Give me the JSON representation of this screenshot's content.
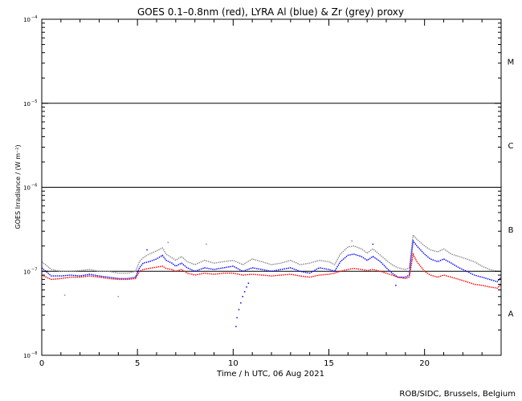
{
  "chart_data": {
    "type": "scatter",
    "title": "GOES 0.1–0.8nm (red), LYRA Al (blue) & Zr (grey) proxy",
    "xlabel": "Time / h UTC, 06 Aug 2021",
    "ylabel": "GOES Irradiance / (W m⁻²)",
    "xlim": [
      0,
      24
    ],
    "ylim": [
      1e-08,
      0.0001
    ],
    "yscale": "log",
    "x_ticks": [
      {
        "value": 0,
        "label": "0"
      },
      {
        "value": 5,
        "label": "5"
      },
      {
        "value": 10,
        "label": "10"
      },
      {
        "value": 15,
        "label": "15"
      },
      {
        "value": 20,
        "label": "20"
      }
    ],
    "y_ticks": [
      {
        "value": 1e-08,
        "base": "10",
        "exp": "−8"
      },
      {
        "value": 1e-07,
        "base": "10",
        "exp": "−7"
      },
      {
        "value": 1e-06,
        "base": "10",
        "exp": "−6"
      },
      {
        "value": 1e-05,
        "base": "10",
        "exp": "−5"
      },
      {
        "value": 0.0001,
        "base": "10",
        "exp": "−4"
      }
    ],
    "flare_class_labels": [
      {
        "label": "A",
        "at": 3.16e-08
      },
      {
        "label": "B",
        "at": 3.16e-07
      },
      {
        "label": "C",
        "at": 3.16e-06
      },
      {
        "label": "M",
        "at": 3.16e-05
      }
    ],
    "reference_lines": [
      1e-07,
      1e-06,
      1e-05
    ],
    "series": [
      {
        "color": "#8c8c8c",
        "x": [
          0,
          0.5,
          1,
          1.5,
          2,
          2.5,
          3,
          3.5,
          4,
          4.5,
          4.9,
          5.1,
          5.3,
          5.6,
          6,
          6.3,
          6.5,
          6.8,
          7,
          7.3,
          7.6,
          8,
          8.5,
          9,
          9.5,
          10,
          10.5,
          11,
          11.5,
          12,
          12.5,
          13,
          13.5,
          14,
          14.5,
          15,
          15.3,
          15.6,
          16,
          16.3,
          16.7,
          17,
          17.3,
          17.7,
          18,
          18.3,
          18.6,
          19,
          19.2,
          19.4,
          19.6,
          20,
          20.3,
          20.7,
          21,
          21.4,
          21.8,
          22.2,
          22.6,
          23,
          23.4,
          23.8,
          24
        ],
        "y": [
          1.3e-07,
          1.05e-07,
          1e-07,
          1e-07,
          1.02e-07,
          1.05e-07,
          1e-07,
          1e-07,
          9.5e-08,
          9.5e-08,
          1e-07,
          1.3e-07,
          1.45e-07,
          1.6e-07,
          1.75e-07,
          1.9e-07,
          1.6e-07,
          1.45e-07,
          1.35e-07,
          1.5e-07,
          1.3e-07,
          1.2e-07,
          1.35e-07,
          1.25e-07,
          1.3e-07,
          1.35e-07,
          1.2e-07,
          1.4e-07,
          1.3e-07,
          1.2e-07,
          1.25e-07,
          1.35e-07,
          1.2e-07,
          1.25e-07,
          1.35e-07,
          1.3e-07,
          1.2e-07,
          1.6e-07,
          1.95e-07,
          2e-07,
          1.85e-07,
          1.65e-07,
          1.85e-07,
          1.55e-07,
          1.35e-07,
          1.2e-07,
          1.1e-07,
          1.05e-07,
          1.1e-07,
          2.7e-07,
          2.4e-07,
          2e-07,
          1.8e-07,
          1.7e-07,
          1.85e-07,
          1.6e-07,
          1.5e-07,
          1.4e-07,
          1.3e-07,
          1.15e-07,
          1.05e-07,
          1e-07,
          1e-07
        ]
      },
      {
        "color": "#0000ff",
        "x": [
          0,
          0.5,
          1,
          1.5,
          2,
          2.5,
          3,
          3.5,
          4,
          4.5,
          4.9,
          5.1,
          5.3,
          5.6,
          6,
          6.3,
          6.5,
          6.8,
          7,
          7.3,
          7.6,
          8,
          8.5,
          9,
          9.5,
          10,
          10.5,
          11,
          11.5,
          12,
          12.5,
          13,
          13.5,
          14,
          14.5,
          15,
          15.3,
          15.6,
          16,
          16.3,
          16.7,
          17,
          17.3,
          17.7,
          18,
          18.3,
          18.6,
          19,
          19.2,
          19.4,
          19.6,
          20,
          20.3,
          20.7,
          21,
          21.4,
          21.8,
          22.2,
          22.6,
          23,
          23.4,
          23.8,
          24
        ],
        "y": [
          1.1e-07,
          8.8e-08,
          8.8e-08,
          9e-08,
          8.8e-08,
          9.2e-08,
          8.8e-08,
          8.5e-08,
          8.2e-08,
          8.2e-08,
          8.5e-08,
          1.1e-07,
          1.25e-07,
          1.3e-07,
          1.4e-07,
          1.55e-07,
          1.35e-07,
          1.25e-07,
          1.15e-07,
          1.25e-07,
          1.1e-07,
          1e-07,
          1.1e-07,
          1.05e-07,
          1.1e-07,
          1.15e-07,
          1e-07,
          1.1e-07,
          1.05e-07,
          1e-07,
          1.05e-07,
          1.1e-07,
          1e-07,
          9.5e-08,
          1.1e-07,
          1.05e-07,
          1e-07,
          1.3e-07,
          1.55e-07,
          1.6e-07,
          1.5e-07,
          1.35e-07,
          1.5e-07,
          1.3e-07,
          1.1e-07,
          9.5e-08,
          8.5e-08,
          8.5e-08,
          9e-08,
          2.3e-07,
          2e-07,
          1.6e-07,
          1.4e-07,
          1.3e-07,
          1.4e-07,
          1.25e-07,
          1.1e-07,
          1e-07,
          9e-08,
          8.5e-08,
          8e-08,
          7.5e-08,
          8.5e-08
        ]
      },
      {
        "color": "#ff0000",
        "x": [
          0,
          0.5,
          1,
          1.5,
          2,
          2.5,
          3,
          3.5,
          4,
          4.5,
          4.9,
          5.1,
          5.3,
          5.6,
          6,
          6.3,
          6.5,
          6.8,
          7,
          7.3,
          7.6,
          8,
          8.5,
          9,
          9.5,
          10,
          10.5,
          11,
          11.5,
          12,
          12.5,
          13,
          13.5,
          14,
          14.5,
          15,
          15.3,
          15.6,
          16,
          16.3,
          16.7,
          17,
          17.3,
          17.7,
          18,
          18.3,
          18.6,
          19,
          19.2,
          19.4,
          19.6,
          20,
          20.3,
          20.7,
          21,
          21.4,
          21.8,
          22.2,
          22.6,
          23,
          23.4,
          23.8,
          24
        ],
        "y": [
          9e-08,
          8e-08,
          8.2e-08,
          8.5e-08,
          8.5e-08,
          8.8e-08,
          8.5e-08,
          8.2e-08,
          8e-08,
          8e-08,
          8.2e-08,
          1e-07,
          1.05e-07,
          1.08e-07,
          1.12e-07,
          1.15e-07,
          1.08e-07,
          1.05e-07,
          1e-07,
          1.05e-07,
          9.5e-08,
          9e-08,
          9.5e-08,
          9.2e-08,
          9.5e-08,
          9.5e-08,
          9e-08,
          9.2e-08,
          9e-08,
          8.8e-08,
          9e-08,
          9.2e-08,
          8.8e-08,
          8.5e-08,
          9e-08,
          9.2e-08,
          9.5e-08,
          1e-07,
          1.05e-07,
          1.08e-07,
          1.05e-07,
          1.02e-07,
          1.05e-07,
          1e-07,
          9.5e-08,
          9e-08,
          8.5e-08,
          8.2e-08,
          8.5e-08,
          1.6e-07,
          1.3e-07,
          1e-07,
          9e-08,
          8.5e-08,
          9e-08,
          8.5e-08,
          8e-08,
          7.5e-08,
          7e-08,
          6.8e-08,
          6.5e-08,
          6.3e-08,
          7e-08
        ]
      }
    ],
    "outlier_points": [
      {
        "color": "#0000ff",
        "x": [
          10.15,
          10.2,
          10.3,
          10.4,
          10.5,
          10.6,
          10.7,
          10.8,
          5.5,
          18.5,
          17.3
        ],
        "y": [
          2.2e-08,
          2.8e-08,
          3.5e-08,
          4.2e-08,
          5e-08,
          5.7e-08,
          6.5e-08,
          7.2e-08,
          1.8e-07,
          6.8e-08,
          2.1e-07
        ]
      },
      {
        "color": "#8c8c8c",
        "x": [
          1.2,
          4.0,
          6.6,
          8.6,
          16.2
        ],
        "y": [
          5.2e-08,
          5e-08,
          2.2e-07,
          2.1e-07,
          2.3e-07
        ]
      }
    ],
    "credit": "ROB/SIDC, Brussels, Belgium"
  }
}
